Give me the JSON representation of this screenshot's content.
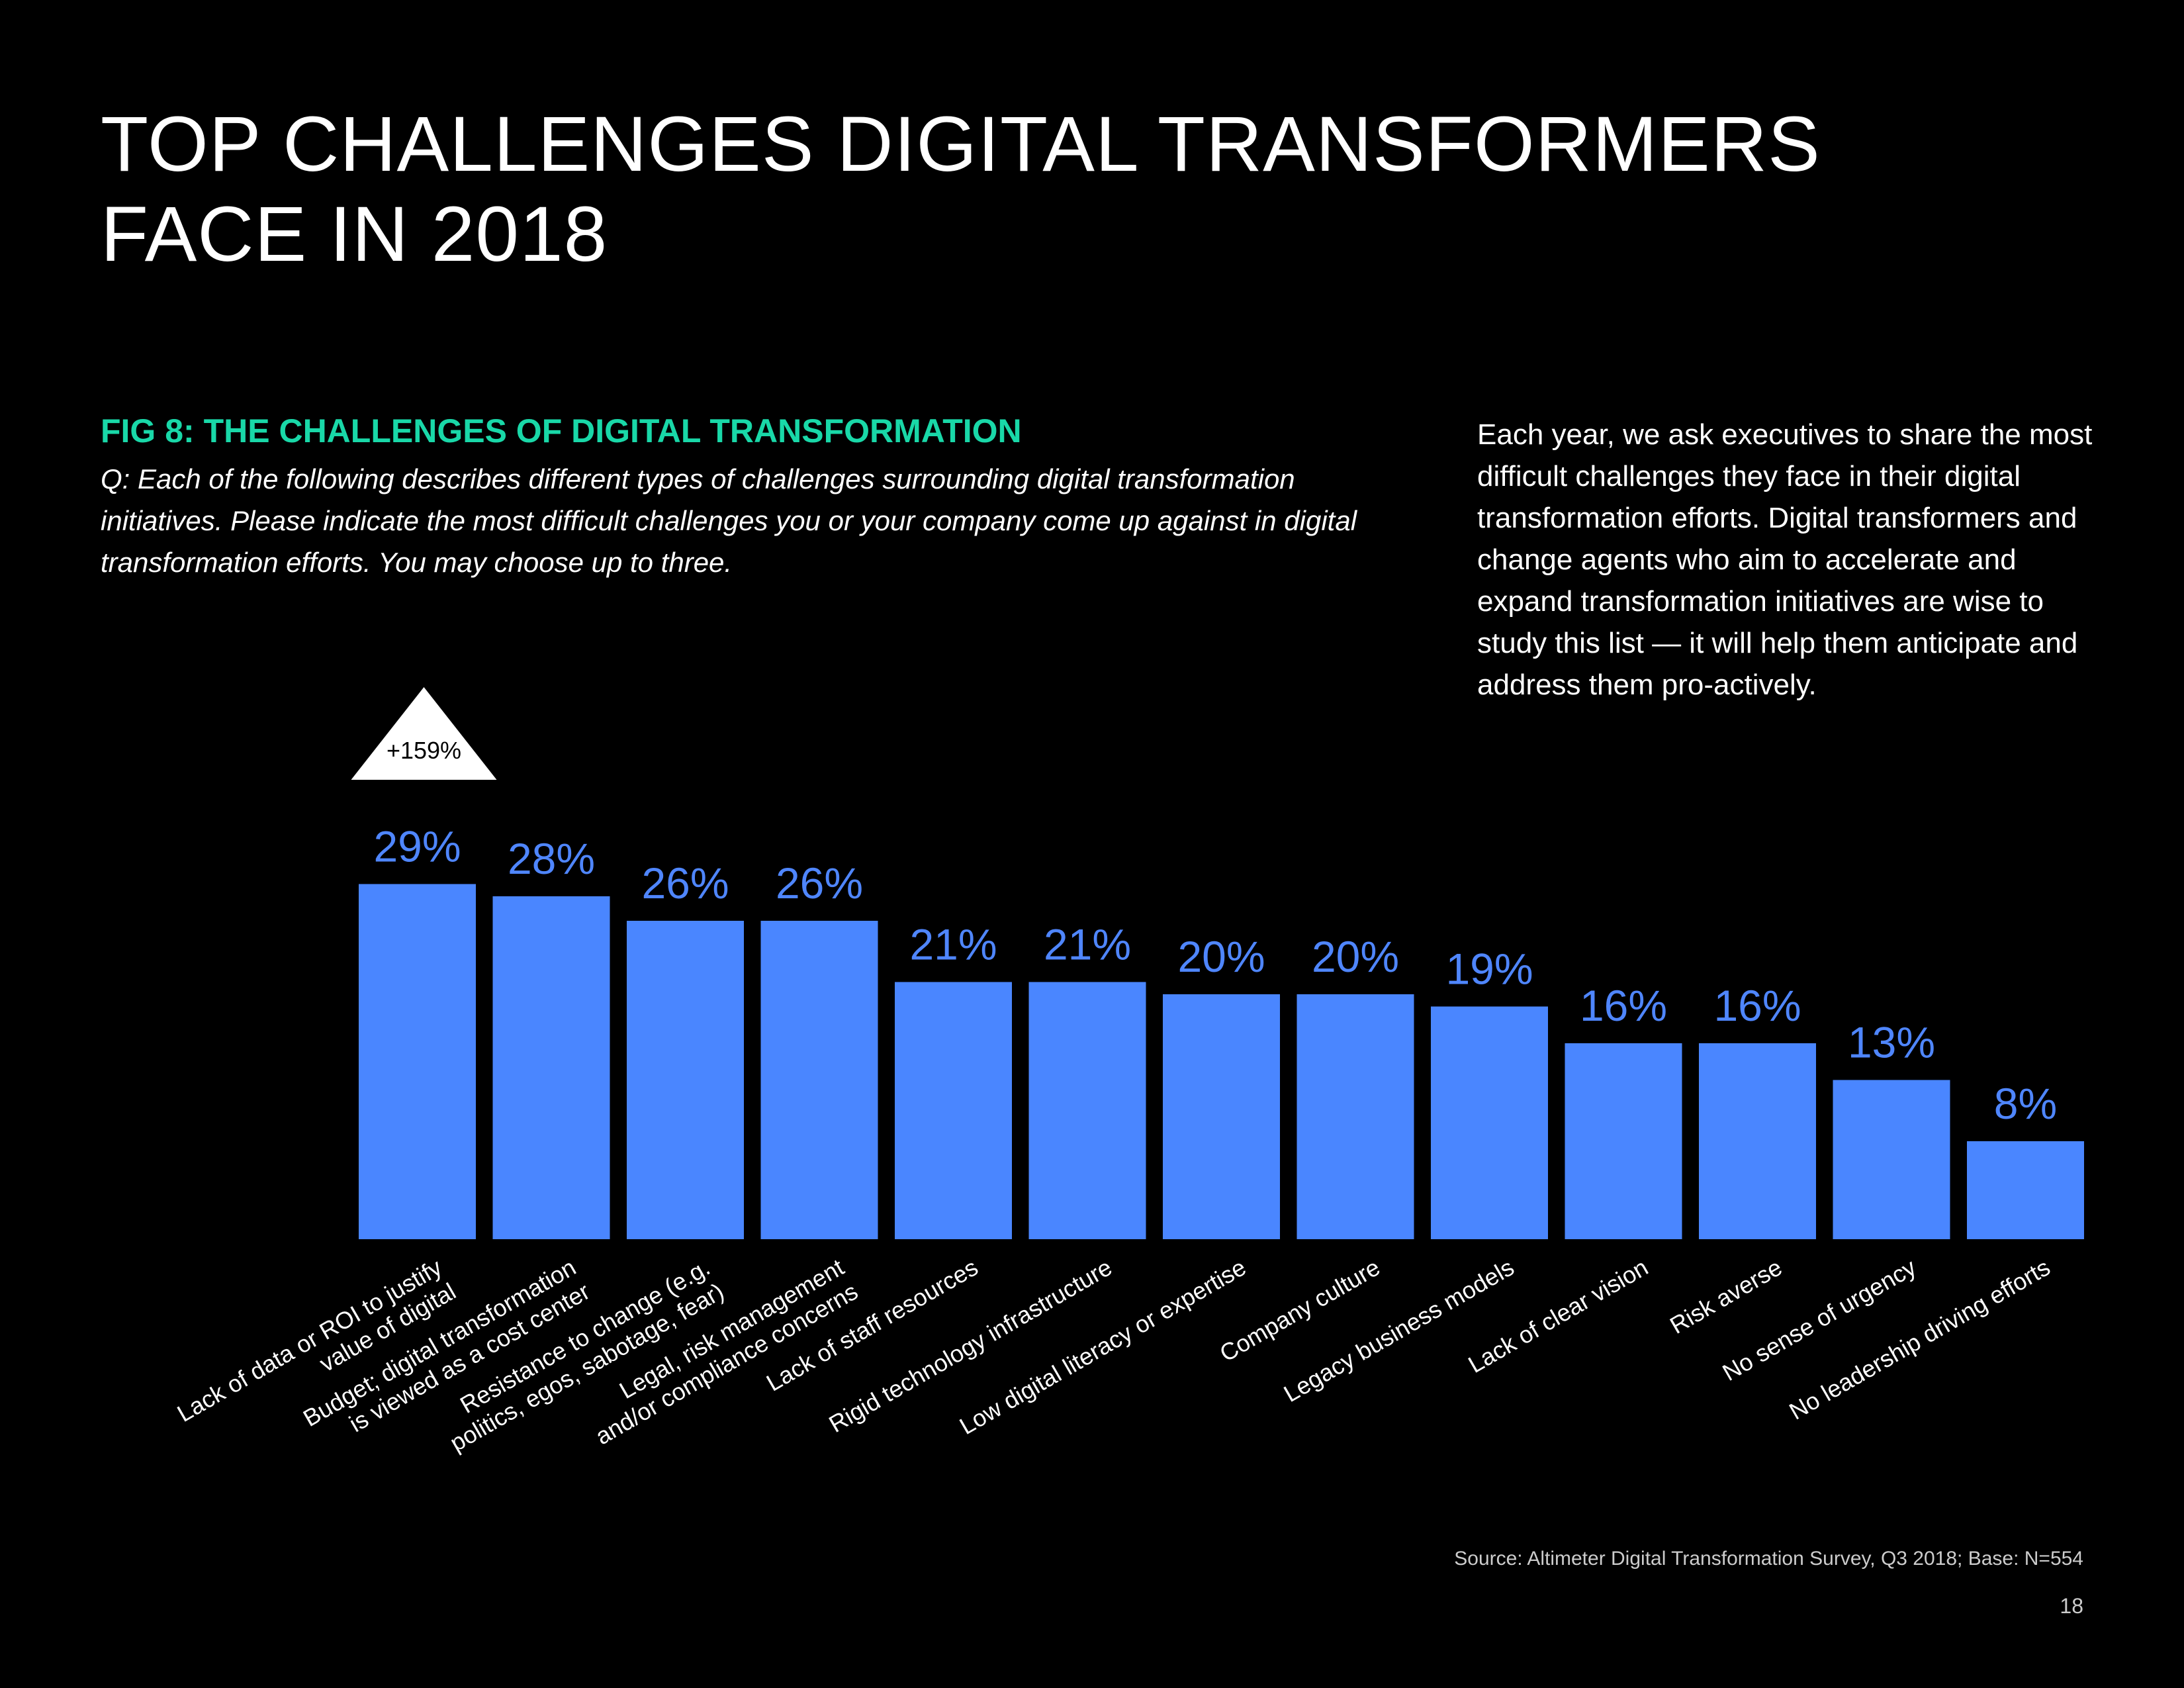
{
  "page": {
    "title_line1": "TOP CHALLENGES DIGITAL TRANSFORMERS",
    "title_line2": "FACE IN 2018",
    "fig_title": "FIG 8: THE CHALLENGES OF DIGITAL TRANSFORMATION",
    "question": "Q: Each of the following describes different types of challenges surrounding digital transformation initiatives. Please indicate the most difficult challenges you or your company come up against in digital transformation efforts. You may choose up to three.",
    "sidebar": "Each year, we ask executives to share the most difficult challenges they face in their digital transformation efforts. Digital transformers and change agents who aim to accelerate and expand transformation initiatives are wise to study this list — it will help them anticipate and address them pro-actively.",
    "source": "Source: Altimeter Digital Transformation Survey, Q3 2018; Base: N=554",
    "page_number": "18"
  },
  "colors": {
    "bar": "#4a86ff",
    "label": "#4f86ff",
    "accent": "#19d8a8",
    "background": "#000000"
  },
  "chart_data": {
    "type": "bar",
    "title": "FIG 8: THE CHALLENGES OF DIGITAL TRANSFORMATION",
    "xlabel": "",
    "ylabel": "",
    "ylim": [
      0,
      30
    ],
    "unit": "%",
    "categories": [
      [
        "Lack of data or ROI to justify",
        "value of digital"
      ],
      [
        "Budget; digital transformation",
        "is viewed as a cost center"
      ],
      [
        "Resistance to change (e.g.",
        "politics, egos, sabotage, fear)"
      ],
      [
        "Legal, risk management",
        "and/or compliance concerns"
      ],
      [
        "Lack of staff resources"
      ],
      [
        "Rigid technology infrastructure"
      ],
      [
        "Low digital literacy or expertise"
      ],
      [
        "Company culture"
      ],
      [
        "Legacy business models"
      ],
      [
        "Lack of clear vision"
      ],
      [
        "Risk averse"
      ],
      [
        "No sense of urgency"
      ],
      [
        "No leadership driving efforts"
      ]
    ],
    "values": [
      29,
      28,
      26,
      26,
      21,
      21,
      20,
      20,
      19,
      16,
      16,
      13,
      8
    ],
    "annotation": {
      "text": "+159%",
      "category_index": 0,
      "shape": "triangle"
    }
  }
}
